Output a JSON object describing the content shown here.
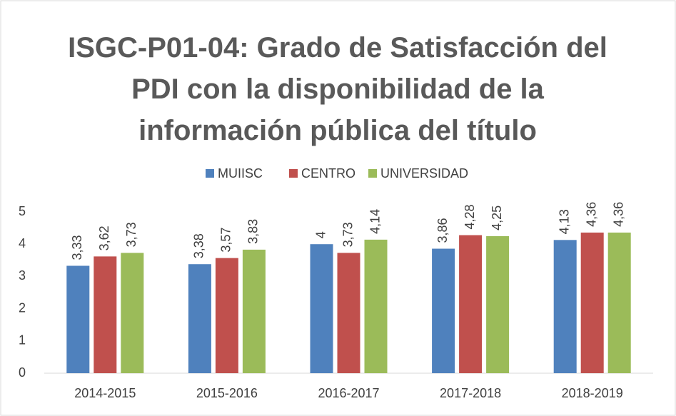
{
  "chart_data": {
    "type": "bar",
    "title": "ISGC-P01-04: Grado de Satisfacción del PDI con la disponibilidad de la información pública del título",
    "categories": [
      "2014-2015",
      "2015-2016",
      "2016-2017",
      "2017-2018",
      "2018-2019"
    ],
    "series": [
      {
        "name": "MUIISC",
        "color": "#4f81bd",
        "values": [
          3.33,
          3.38,
          4,
          3.86,
          4.13
        ],
        "value_labels": [
          "3,33",
          "3,38",
          "4",
          "3,86",
          "4,13"
        ]
      },
      {
        "name": "CENTRO",
        "color": "#c0504d",
        "values": [
          3.62,
          3.57,
          3.73,
          4.28,
          4.36
        ],
        "value_labels": [
          "3,62",
          "3,57",
          "3,73",
          "4,28",
          "4,36"
        ]
      },
      {
        "name": "UNIVERSIDAD",
        "color": "#9bbb59",
        "values": [
          3.73,
          3.83,
          4.14,
          4.25,
          4.36
        ],
        "value_labels": [
          "3,73",
          "3,83",
          "4,14",
          "4,25",
          "4,36"
        ]
      }
    ],
    "ylim": [
      0,
      5
    ],
    "yticks": [
      0,
      1,
      2,
      3,
      4,
      5
    ],
    "grid": false,
    "legend": "top"
  }
}
